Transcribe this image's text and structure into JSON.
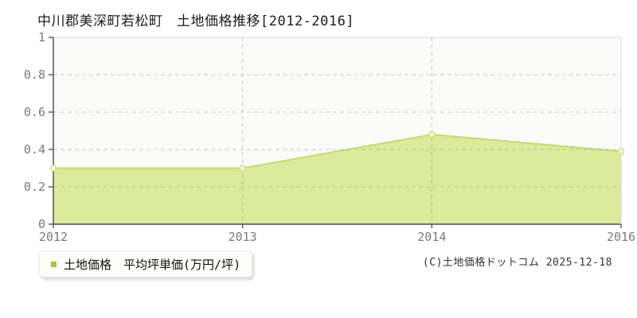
{
  "title": "中川郡美深町若松町　土地価格推移[2012-2016]",
  "legend": {
    "label": "土地価格　平均坪単価(万円/坪)",
    "swatch_color": "#a5c63b"
  },
  "footer": {
    "copyright": "(C)土地価格ドットコム 2025-12-18"
  },
  "colors": {
    "area_fill": "#dcea9b",
    "line": "#c3dc6a",
    "marker_fill": "#fffff4",
    "marker_stroke": "#d2e282",
    "grid": "#8c8c8c",
    "axis": "#4a4a4a",
    "plot_border": "#d9d9d9",
    "plot_bg": "#fbfbfa",
    "tick_label": "#7a7a7a"
  },
  "chart_data": {
    "type": "area",
    "title": "中川郡美深町若松町　土地価格推移[2012-2016]",
    "categories": [
      "2012",
      "2013",
      "2014",
      "2016"
    ],
    "series": [
      {
        "name": "土地価格 平均坪単価(万円/坪)",
        "values": [
          0.3,
          0.3,
          0.48,
          0.39
        ]
      }
    ],
    "xlabel": "",
    "ylabel": "",
    "ylim": [
      0,
      1
    ],
    "yticks": [
      0,
      0.2,
      0.4,
      0.6,
      0.8,
      1
    ],
    "grid": true,
    "marker": "open-circle",
    "legend_position": "bottom-left"
  }
}
